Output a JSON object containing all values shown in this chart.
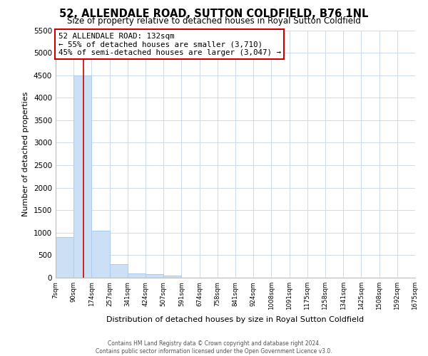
{
  "title": "52, ALLENDALE ROAD, SUTTON COLDFIELD, B76 1NL",
  "subtitle": "Size of property relative to detached houses in Royal Sutton Coldfield",
  "xlabel": "Distribution of detached houses by size in Royal Sutton Coldfield",
  "ylabel": "Number of detached properties",
  "bar_values": [
    900,
    4500,
    1050,
    300,
    100,
    80,
    50,
    0,
    0,
    0,
    0,
    0,
    0,
    0,
    0,
    0,
    0,
    0,
    0,
    0
  ],
  "bar_color": "#cce0f5",
  "bar_edge_color": "#aaccee",
  "tick_labels": [
    "7sqm",
    "90sqm",
    "174sqm",
    "257sqm",
    "341sqm",
    "424sqm",
    "507sqm",
    "591sqm",
    "674sqm",
    "758sqm",
    "841sqm",
    "924sqm",
    "1008sqm",
    "1091sqm",
    "1175sqm",
    "1258sqm",
    "1341sqm",
    "1425sqm",
    "1508sqm",
    "1592sqm",
    "1675sqm"
  ],
  "ylim": [
    0,
    5500
  ],
  "yticks": [
    0,
    500,
    1000,
    1500,
    2000,
    2500,
    3000,
    3500,
    4000,
    4500,
    5000,
    5500
  ],
  "vline_x": 1.55,
  "vline_color": "#cc0000",
  "annotation_title": "52 ALLENDALE ROAD: 132sqm",
  "annotation_line1": "← 55% of detached houses are smaller (3,710)",
  "annotation_line2": "45% of semi-detached houses are larger (3,047) →",
  "annotation_box_color": "#ffffff",
  "annotation_box_edge": "#cc0000",
  "footer1": "Contains HM Land Registry data © Crown copyright and database right 2024.",
  "footer2": "Contains public sector information licensed under the Open Government Licence v3.0.",
  "background_color": "#ffffff",
  "grid_color": "#ccdcec"
}
